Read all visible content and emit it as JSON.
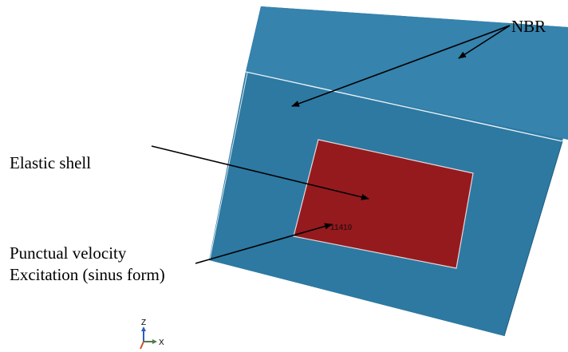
{
  "labels": {
    "nbr": "NBR",
    "elastic_shell": "Elastic shell",
    "punctual_line1": "Punctual velocity",
    "punctual_line2": "Excitation (sinus form)"
  },
  "node_id": "11410",
  "triad": {
    "z": "Z",
    "x": "X"
  },
  "colors": {
    "nbr_front": "#2d79a2",
    "nbr_top": "#3683ad",
    "nbr_side": "#4d93bb",
    "elastic_shell": "#951a1e",
    "edge_line": "#e9f2f7",
    "arrow": "#000000",
    "axis_z": "#2a5cc2",
    "axis_x": "#4f7a4a"
  }
}
